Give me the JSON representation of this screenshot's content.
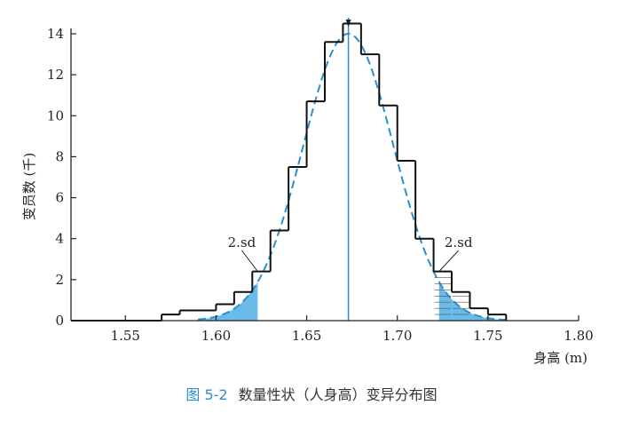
{
  "chart_data": {
    "type": "bar",
    "title": "",
    "xlabel": "身高 (m)",
    "ylabel": "变员数 (千)",
    "xlim": [
      1.52,
      1.8
    ],
    "ylim": [
      0,
      14
    ],
    "x_ticks": [
      "1.55",
      "1.60",
      "1.65",
      "1.70",
      "1.75",
      "1.80"
    ],
    "y_ticks": [
      "0",
      "2",
      "4",
      "6",
      "8",
      "10",
      "12",
      "14"
    ],
    "grid": false,
    "bin_width": 0.01,
    "series": [
      {
        "kind": "histogram-step",
        "bins": [
          {
            "x0": 1.52,
            "x1": 1.57,
            "value": 0.0
          },
          {
            "x0": 1.57,
            "x1": 1.58,
            "value": 0.3
          },
          {
            "x0": 1.58,
            "x1": 1.59,
            "value": 0.5
          },
          {
            "x0": 1.59,
            "x1": 1.6,
            "value": 0.5
          },
          {
            "x0": 1.6,
            "x1": 1.61,
            "value": 0.8
          },
          {
            "x0": 1.61,
            "x1": 1.62,
            "value": 1.4
          },
          {
            "x0": 1.62,
            "x1": 1.63,
            "value": 2.4
          },
          {
            "x0": 1.63,
            "x1": 1.64,
            "value": 4.4
          },
          {
            "x0": 1.64,
            "x1": 1.65,
            "value": 7.5
          },
          {
            "x0": 1.65,
            "x1": 1.66,
            "value": 10.7
          },
          {
            "x0": 1.66,
            "x1": 1.67,
            "value": 13.6
          },
          {
            "x0": 1.67,
            "x1": 1.68,
            "value": 14.5
          },
          {
            "x0": 1.68,
            "x1": 1.69,
            "value": 13.0
          },
          {
            "x0": 1.69,
            "x1": 1.7,
            "value": 10.5
          },
          {
            "x0": 1.7,
            "x1": 1.71,
            "value": 7.8
          },
          {
            "x0": 1.71,
            "x1": 1.72,
            "value": 4.0
          },
          {
            "x0": 1.72,
            "x1": 1.73,
            "value": 2.4
          },
          {
            "x0": 1.73,
            "x1": 1.74,
            "value": 1.4
          },
          {
            "x0": 1.74,
            "x1": 1.75,
            "value": 0.6
          },
          {
            "x0": 1.75,
            "x1": 1.76,
            "value": 0.3
          }
        ]
      },
      {
        "kind": "normal-curve",
        "mean": 1.673,
        "sd": 0.025,
        "peak": 14.0,
        "x_range": [
          1.59,
          1.76
        ],
        "style": "dashed",
        "color": "#2a8fcf"
      }
    ],
    "mean_line_x": 1.673,
    "shaded_tails": [
      {
        "from": 1.59,
        "to": 1.623,
        "color": "#5ab4e8"
      },
      {
        "from": 1.723,
        "to": 1.76,
        "color": "#5ab4e8"
      }
    ],
    "annotations": [
      {
        "text": "2.sd",
        "point_x": 1.623,
        "point_y": 2.4
      },
      {
        "text": "2.sd",
        "point_x": 1.723,
        "point_y": 2.4
      }
    ]
  },
  "caption": {
    "figure_number": "图 5-2",
    "text": "数量性状（人身高）变异分布图"
  },
  "colors": {
    "accent": "#2a8fcf",
    "tail_fill": "#5ab4e8",
    "axis": "#222222",
    "histogram": "#111111"
  }
}
